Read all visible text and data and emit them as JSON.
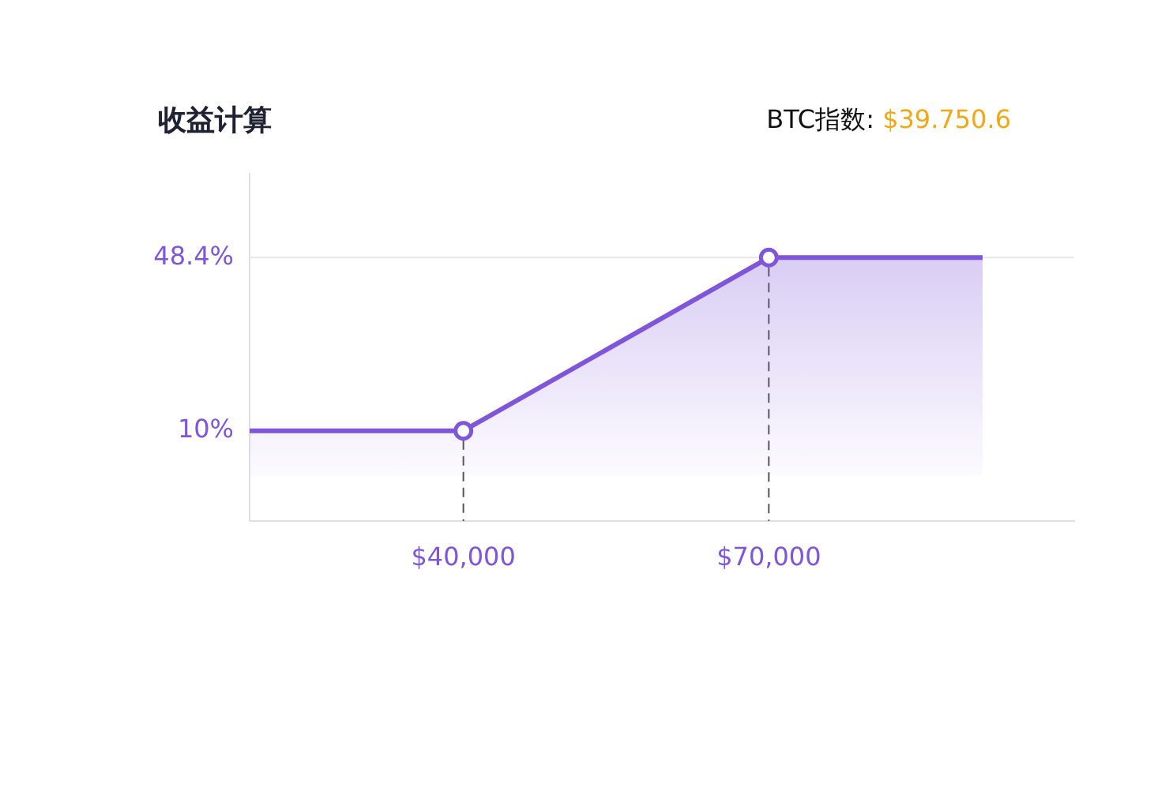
{
  "chart_data": {
    "type": "area",
    "title": "收益计算",
    "annotations": [
      "BTC指数:",
      "$39.750.6"
    ],
    "x": [
      19000,
      40000,
      70000,
      91000
    ],
    "series": [
      {
        "color": "#7f56d9",
        "values": [
          10,
          10,
          48.4,
          48.4
        ]
      }
    ],
    "xlim": [
      19000,
      100000
    ],
    "xticks": [
      {
        "value": 40000,
        "label": "$40,000"
      },
      {
        "value": 70000,
        "label": "$70,000"
      }
    ],
    "ylim": [
      -10,
      67
    ],
    "yticks": [
      {
        "value": 10,
        "label": "10%"
      },
      {
        "value": 48.4,
        "label": "48.4%"
      }
    ],
    "ref_lines": [
      {
        "axis": "x",
        "value": 40000,
        "color": "#555555",
        "line_style": "dashed"
      },
      {
        "axis": "x",
        "value": 70000,
        "color": "#555555",
        "line_style": "dashed"
      },
      {
        "axis": "y",
        "value": 48.4,
        "color": "#e6e6ea",
        "line_style": "solid"
      }
    ],
    "marker": "circle",
    "line_style": "solid",
    "legend": false
  }
}
